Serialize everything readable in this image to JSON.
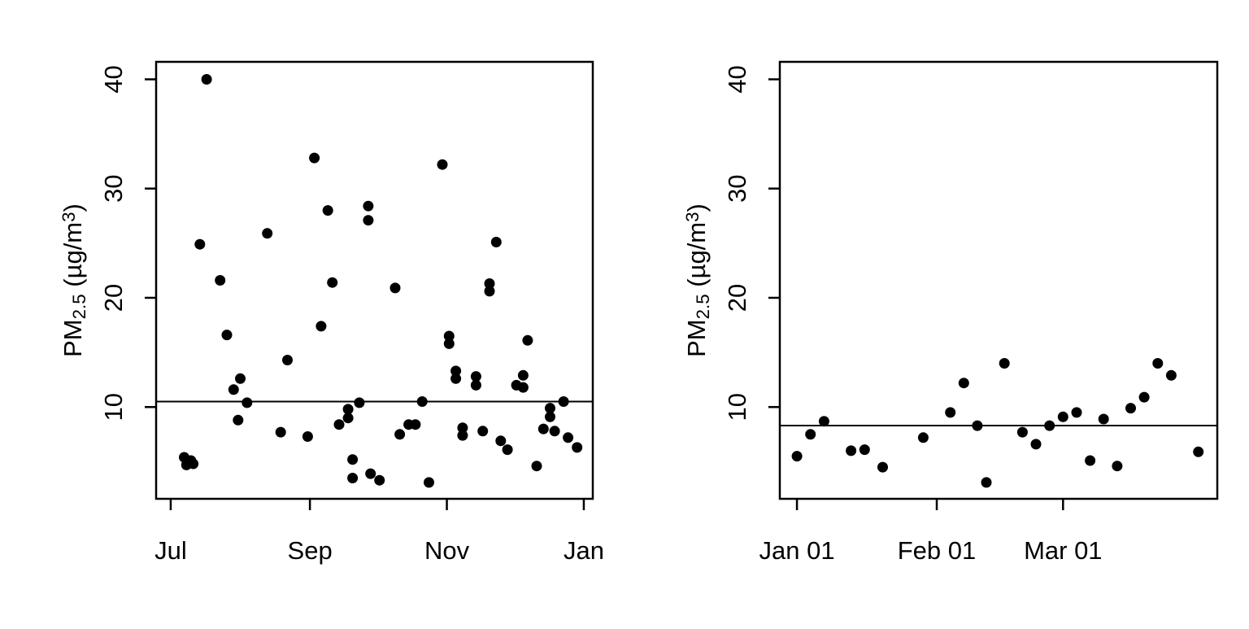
{
  "figure": {
    "background": "#ffffff",
    "axis_color": "#000000",
    "point_color": "#000000",
    "ylabel_parts": [
      {
        "t": "PM"
      },
      {
        "t": "2.5",
        "style": "sub"
      },
      {
        "t": " (µg/m",
        "style": ""
      },
      {
        "t": "3",
        "style": "sup"
      },
      {
        "t": ")",
        "style": ""
      }
    ]
  },
  "chart_data": [
    {
      "type": "scatter",
      "panel": "left",
      "title": "",
      "xlabel": "",
      "ylabel": "PM2.5 (µg/m³)",
      "x_unit": "date (Jul 1 = day 0)",
      "grid": false,
      "legend": "none",
      "x_ticks": [
        {
          "label": "Jul",
          "day": 0
        },
        {
          "label": "Sep",
          "day": 62
        },
        {
          "label": "Nov",
          "day": 123
        },
        {
          "label": "Jan",
          "day": 184
        }
      ],
      "y_ticks": [
        10,
        20,
        30,
        40
      ],
      "xlim_days": [
        -6.5,
        188
      ],
      "ylim": [
        1.6,
        41.6
      ],
      "hline_mean": 10.5,
      "points": [
        {
          "date": "Jul 07",
          "day": 6,
          "pm25": 5.4
        },
        {
          "date": "Jul 08",
          "day": 7,
          "pm25": 4.7
        },
        {
          "date": "Jul 10",
          "day": 9,
          "pm25": 5.1
        },
        {
          "date": "Jul 11",
          "day": 10,
          "pm25": 4.8
        },
        {
          "date": "Jul 14",
          "day": 13,
          "pm25": 24.9
        },
        {
          "date": "Jul 17",
          "day": 16,
          "pm25": 40.0
        },
        {
          "date": "Jul 23",
          "day": 22,
          "pm25": 21.6
        },
        {
          "date": "Jul 26",
          "day": 25,
          "pm25": 16.6
        },
        {
          "date": "Jul 29",
          "day": 28,
          "pm25": 11.6
        },
        {
          "date": "Jul 31",
          "day": 30,
          "pm25": 8.8
        },
        {
          "date": "Aug 01",
          "day": 31,
          "pm25": 12.6
        },
        {
          "date": "Aug 04",
          "day": 34,
          "pm25": 10.4
        },
        {
          "date": "Aug 13",
          "day": 43,
          "pm25": 25.9
        },
        {
          "date": "Aug 19",
          "day": 49,
          "pm25": 7.7
        },
        {
          "date": "Aug 22",
          "day": 52,
          "pm25": 14.3
        },
        {
          "date": "Aug 31",
          "day": 61,
          "pm25": 7.3
        },
        {
          "date": "Sep 03",
          "day": 64,
          "pm25": 32.8
        },
        {
          "date": "Sep 06",
          "day": 67,
          "pm25": 17.4
        },
        {
          "date": "Sep 09",
          "day": 70,
          "pm25": 28.0
        },
        {
          "date": "Sep 11",
          "day": 72,
          "pm25": 21.4
        },
        {
          "date": "Sep 14",
          "day": 75,
          "pm25": 8.4
        },
        {
          "date": "Sep 18",
          "day": 79,
          "pm25": 9.8
        },
        {
          "date": "Sep 18",
          "day": 79,
          "pm25": 9.0
        },
        {
          "date": "Sep 20",
          "day": 81,
          "pm25": 5.2
        },
        {
          "date": "Sep 20",
          "day": 81,
          "pm25": 3.5
        },
        {
          "date": "Sep 23",
          "day": 84,
          "pm25": 10.4
        },
        {
          "date": "Sep 27",
          "day": 88,
          "pm25": 28.4
        },
        {
          "date": "Sep 27",
          "day": 88,
          "pm25": 27.1
        },
        {
          "date": "Sep 28",
          "day": 89,
          "pm25": 3.9
        },
        {
          "date": "Oct 02",
          "day": 93,
          "pm25": 3.3
        },
        {
          "date": "Oct 09",
          "day": 100,
          "pm25": 20.9
        },
        {
          "date": "Oct 11",
          "day": 102,
          "pm25": 7.5
        },
        {
          "date": "Oct 15",
          "day": 106,
          "pm25": 8.4
        },
        {
          "date": "Oct 18",
          "day": 109,
          "pm25": 8.4
        },
        {
          "date": "Oct 21",
          "day": 112,
          "pm25": 10.5
        },
        {
          "date": "Oct 24",
          "day": 115,
          "pm25": 3.1
        },
        {
          "date": "Oct 30",
          "day": 121,
          "pm25": 32.2
        },
        {
          "date": "Nov 02",
          "day": 124,
          "pm25": 16.5
        },
        {
          "date": "Nov 02",
          "day": 124,
          "pm25": 15.8
        },
        {
          "date": "Nov 05",
          "day": 127,
          "pm25": 13.3
        },
        {
          "date": "Nov 05",
          "day": 127,
          "pm25": 12.6
        },
        {
          "date": "Nov 08",
          "day": 130,
          "pm25": 8.1
        },
        {
          "date": "Nov 08",
          "day": 130,
          "pm25": 7.4
        },
        {
          "date": "Nov 14",
          "day": 136,
          "pm25": 12.8
        },
        {
          "date": "Nov 14",
          "day": 136,
          "pm25": 12.0
        },
        {
          "date": "Nov 17",
          "day": 139,
          "pm25": 7.8
        },
        {
          "date": "Nov 20",
          "day": 142,
          "pm25": 21.3
        },
        {
          "date": "Nov 20",
          "day": 142,
          "pm25": 20.6
        },
        {
          "date": "Nov 23",
          "day": 145,
          "pm25": 25.1
        },
        {
          "date": "Nov 25",
          "day": 147,
          "pm25": 6.9
        },
        {
          "date": "Nov 28",
          "day": 150,
          "pm25": 6.1
        },
        {
          "date": "Dec 02",
          "day": 154,
          "pm25": 12.0
        },
        {
          "date": "Dec 05",
          "day": 157,
          "pm25": 12.9
        },
        {
          "date": "Dec 05",
          "day": 157,
          "pm25": 11.8
        },
        {
          "date": "Dec 07",
          "day": 159,
          "pm25": 16.1
        },
        {
          "date": "Dec 11",
          "day": 163,
          "pm25": 4.6
        },
        {
          "date": "Dec 14",
          "day": 166,
          "pm25": 8.0
        },
        {
          "date": "Dec 17",
          "day": 169,
          "pm25": 9.9
        },
        {
          "date": "Dec 17",
          "day": 169,
          "pm25": 9.1
        },
        {
          "date": "Dec 19",
          "day": 171,
          "pm25": 7.8
        },
        {
          "date": "Dec 23",
          "day": 175,
          "pm25": 10.5
        },
        {
          "date": "Dec 25",
          "day": 177,
          "pm25": 7.2
        },
        {
          "date": "Dec 29",
          "day": 181,
          "pm25": 6.3
        }
      ]
    },
    {
      "type": "scatter",
      "panel": "right",
      "title": "",
      "xlabel": "",
      "ylabel": "PM2.5 (µg/m³)",
      "x_unit": "date (Jan 1 = day 0)",
      "grid": false,
      "legend": "none",
      "x_ticks": [
        {
          "label": "Jan 01",
          "day": 0
        },
        {
          "label": "Feb 01",
          "day": 31
        },
        {
          "label": "Mar 01",
          "day": 59
        }
      ],
      "y_ticks": [
        10,
        20,
        30,
        40
      ],
      "xlim_days": [
        -3.8,
        93.2
      ],
      "ylim": [
        1.6,
        41.6
      ],
      "hline_mean": 8.3,
      "points": [
        {
          "date": "Jan 01",
          "day": 0,
          "pm25": 5.5
        },
        {
          "date": "Jan 04",
          "day": 3,
          "pm25": 7.5
        },
        {
          "date": "Jan 07",
          "day": 6,
          "pm25": 8.7
        },
        {
          "date": "Jan 13",
          "day": 12,
          "pm25": 6.0
        },
        {
          "date": "Jan 16",
          "day": 15,
          "pm25": 6.1
        },
        {
          "date": "Jan 20",
          "day": 19,
          "pm25": 4.5
        },
        {
          "date": "Jan 29",
          "day": 28,
          "pm25": 7.2
        },
        {
          "date": "Feb 04",
          "day": 34,
          "pm25": 9.5
        },
        {
          "date": "Feb 07",
          "day": 37,
          "pm25": 12.2
        },
        {
          "date": "Feb 10",
          "day": 40,
          "pm25": 8.3
        },
        {
          "date": "Feb 12",
          "day": 42,
          "pm25": 3.1
        },
        {
          "date": "Feb 16",
          "day": 46,
          "pm25": 14.0
        },
        {
          "date": "Feb 20",
          "day": 50,
          "pm25": 7.7
        },
        {
          "date": "Feb 23",
          "day": 53,
          "pm25": 6.6
        },
        {
          "date": "Feb 26",
          "day": 56,
          "pm25": 8.3
        },
        {
          "date": "Mar 01",
          "day": 59,
          "pm25": 9.1
        },
        {
          "date": "Mar 04",
          "day": 62,
          "pm25": 9.5
        },
        {
          "date": "Mar 07",
          "day": 65,
          "pm25": 5.1
        },
        {
          "date": "Mar 10",
          "day": 68,
          "pm25": 8.9
        },
        {
          "date": "Mar 13",
          "day": 71,
          "pm25": 4.6
        },
        {
          "date": "Mar 16",
          "day": 74,
          "pm25": 9.9
        },
        {
          "date": "Mar 19",
          "day": 77,
          "pm25": 10.9
        },
        {
          "date": "Mar 22",
          "day": 80,
          "pm25": 14.0
        },
        {
          "date": "Mar 25",
          "day": 83,
          "pm25": 12.9
        },
        {
          "date": "Mar 31",
          "day": 89,
          "pm25": 5.9
        }
      ]
    }
  ]
}
